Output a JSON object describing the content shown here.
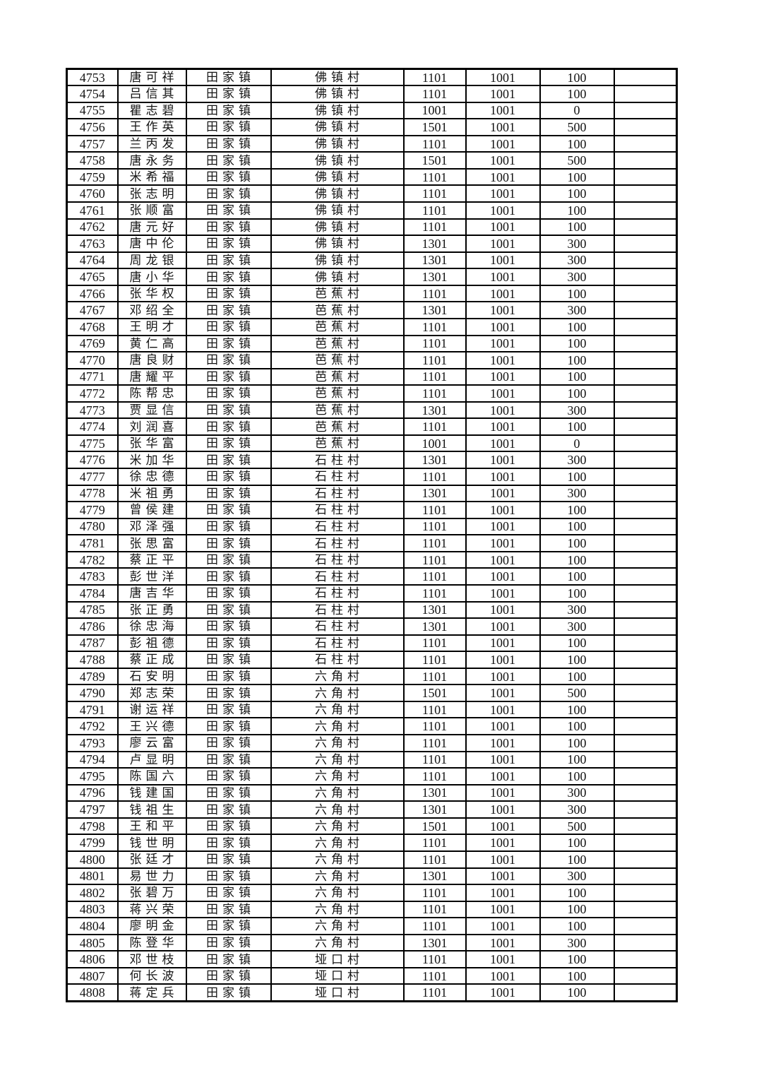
{
  "colors": {
    "page_background": "#ffffff",
    "border": "#000000",
    "text": "#141414"
  },
  "table": {
    "rows": [
      [
        "4753",
        "唐可祥",
        "田家镇",
        "佛镇村",
        "1101",
        "1001",
        "100",
        ""
      ],
      [
        "4754",
        "吕信其",
        "田家镇",
        "佛镇村",
        "1101",
        "1001",
        "100",
        ""
      ],
      [
        "4755",
        "瞿志碧",
        "田家镇",
        "佛镇村",
        "1001",
        "1001",
        "0",
        ""
      ],
      [
        "4756",
        "王作英",
        "田家镇",
        "佛镇村",
        "1501",
        "1001",
        "500",
        ""
      ],
      [
        "4757",
        "兰丙发",
        "田家镇",
        "佛镇村",
        "1101",
        "1001",
        "100",
        ""
      ],
      [
        "4758",
        "唐永务",
        "田家镇",
        "佛镇村",
        "1501",
        "1001",
        "500",
        ""
      ],
      [
        "4759",
        "米希福",
        "田家镇",
        "佛镇村",
        "1101",
        "1001",
        "100",
        ""
      ],
      [
        "4760",
        "张志明",
        "田家镇",
        "佛镇村",
        "1101",
        "1001",
        "100",
        ""
      ],
      [
        "4761",
        "张顺富",
        "田家镇",
        "佛镇村",
        "1101",
        "1001",
        "100",
        ""
      ],
      [
        "4762",
        "唐元好",
        "田家镇",
        "佛镇村",
        "1101",
        "1001",
        "100",
        ""
      ],
      [
        "4763",
        "唐中伦",
        "田家镇",
        "佛镇村",
        "1301",
        "1001",
        "300",
        ""
      ],
      [
        "4764",
        "周龙银",
        "田家镇",
        "佛镇村",
        "1301",
        "1001",
        "300",
        ""
      ],
      [
        "4765",
        "唐小华",
        "田家镇",
        "佛镇村",
        "1301",
        "1001",
        "300",
        ""
      ],
      [
        "4766",
        "张华权",
        "田家镇",
        "芭蕉村",
        "1101",
        "1001",
        "100",
        ""
      ],
      [
        "4767",
        "邓绍全",
        "田家镇",
        "芭蕉村",
        "1301",
        "1001",
        "300",
        ""
      ],
      [
        "4768",
        "王明才",
        "田家镇",
        "芭蕉村",
        "1101",
        "1001",
        "100",
        ""
      ],
      [
        "4769",
        "黄仁高",
        "田家镇",
        "芭蕉村",
        "1101",
        "1001",
        "100",
        ""
      ],
      [
        "4770",
        "唐良财",
        "田家镇",
        "芭蕉村",
        "1101",
        "1001",
        "100",
        ""
      ],
      [
        "4771",
        "唐耀平",
        "田家镇",
        "芭蕉村",
        "1101",
        "1001",
        "100",
        ""
      ],
      [
        "4772",
        "陈帮忠",
        "田家镇",
        "芭蕉村",
        "1101",
        "1001",
        "100",
        ""
      ],
      [
        "4773",
        "贾显信",
        "田家镇",
        "芭蕉村",
        "1301",
        "1001",
        "300",
        ""
      ],
      [
        "4774",
        "刘润喜",
        "田家镇",
        "芭蕉村",
        "1101",
        "1001",
        "100",
        ""
      ],
      [
        "4775",
        "张华富",
        "田家镇",
        "芭蕉村",
        "1001",
        "1001",
        "0",
        ""
      ],
      [
        "4776",
        "米加华",
        "田家镇",
        "石柱村",
        "1301",
        "1001",
        "300",
        ""
      ],
      [
        "4777",
        "徐忠德",
        "田家镇",
        "石柱村",
        "1101",
        "1001",
        "100",
        ""
      ],
      [
        "4778",
        "米祖勇",
        "田家镇",
        "石柱村",
        "1301",
        "1001",
        "300",
        ""
      ],
      [
        "4779",
        "曾侯建",
        "田家镇",
        "石柱村",
        "1101",
        "1001",
        "100",
        ""
      ],
      [
        "4780",
        "邓泽强",
        "田家镇",
        "石柱村",
        "1101",
        "1001",
        "100",
        ""
      ],
      [
        "4781",
        "张思富",
        "田家镇",
        "石柱村",
        "1101",
        "1001",
        "100",
        ""
      ],
      [
        "4782",
        "蔡正平",
        "田家镇",
        "石柱村",
        "1101",
        "1001",
        "100",
        ""
      ],
      [
        "4783",
        "彭世洋",
        "田家镇",
        "石柱村",
        "1101",
        "1001",
        "100",
        ""
      ],
      [
        "4784",
        "唐吉华",
        "田家镇",
        "石柱村",
        "1101",
        "1001",
        "100",
        ""
      ],
      [
        "4785",
        "张正勇",
        "田家镇",
        "石柱村",
        "1301",
        "1001",
        "300",
        ""
      ],
      [
        "4786",
        "徐忠海",
        "田家镇",
        "石柱村",
        "1301",
        "1001",
        "300",
        ""
      ],
      [
        "4787",
        "彭祖德",
        "田家镇",
        "石柱村",
        "1101",
        "1001",
        "100",
        ""
      ],
      [
        "4788",
        "蔡正成",
        "田家镇",
        "石柱村",
        "1101",
        "1001",
        "100",
        ""
      ],
      [
        "4789",
        "石安明",
        "田家镇",
        "六角村",
        "1101",
        "1001",
        "100",
        ""
      ],
      [
        "4790",
        "郑志荣",
        "田家镇",
        "六角村",
        "1501",
        "1001",
        "500",
        ""
      ],
      [
        "4791",
        "谢运祥",
        "田家镇",
        "六角村",
        "1101",
        "1001",
        "100",
        ""
      ],
      [
        "4792",
        "王兴德",
        "田家镇",
        "六角村",
        "1101",
        "1001",
        "100",
        ""
      ],
      [
        "4793",
        "廖云富",
        "田家镇",
        "六角村",
        "1101",
        "1001",
        "100",
        ""
      ],
      [
        "4794",
        "卢显明",
        "田家镇",
        "六角村",
        "1101",
        "1001",
        "100",
        ""
      ],
      [
        "4795",
        "陈国六",
        "田家镇",
        "六角村",
        "1101",
        "1001",
        "100",
        ""
      ],
      [
        "4796",
        "钱建国",
        "田家镇",
        "六角村",
        "1301",
        "1001",
        "300",
        ""
      ],
      [
        "4797",
        "钱祖生",
        "田家镇",
        "六角村",
        "1301",
        "1001",
        "300",
        ""
      ],
      [
        "4798",
        "王和平",
        "田家镇",
        "六角村",
        "1501",
        "1001",
        "500",
        ""
      ],
      [
        "4799",
        "钱世明",
        "田家镇",
        "六角村",
        "1101",
        "1001",
        "100",
        ""
      ],
      [
        "4800",
        "张廷才",
        "田家镇",
        "六角村",
        "1101",
        "1001",
        "100",
        ""
      ],
      [
        "4801",
        "易世力",
        "田家镇",
        "六角村",
        "1301",
        "1001",
        "300",
        ""
      ],
      [
        "4802",
        "张碧万",
        "田家镇",
        "六角村",
        "1101",
        "1001",
        "100",
        ""
      ],
      [
        "4803",
        "蒋兴荣",
        "田家镇",
        "六角村",
        "1101",
        "1001",
        "100",
        ""
      ],
      [
        "4804",
        "廖明金",
        "田家镇",
        "六角村",
        "1101",
        "1001",
        "100",
        ""
      ],
      [
        "4805",
        "陈登华",
        "田家镇",
        "六角村",
        "1301",
        "1001",
        "300",
        ""
      ],
      [
        "4806",
        "邓世枝",
        "田家镇",
        "垭口村",
        "1101",
        "1001",
        "100",
        ""
      ],
      [
        "4807",
        "何长波",
        "田家镇",
        "垭口村",
        "1101",
        "1001",
        "100",
        ""
      ],
      [
        "4808",
        "蒋定兵",
        "田家镇",
        "垭口村",
        "1101",
        "1001",
        "100",
        ""
      ]
    ]
  }
}
